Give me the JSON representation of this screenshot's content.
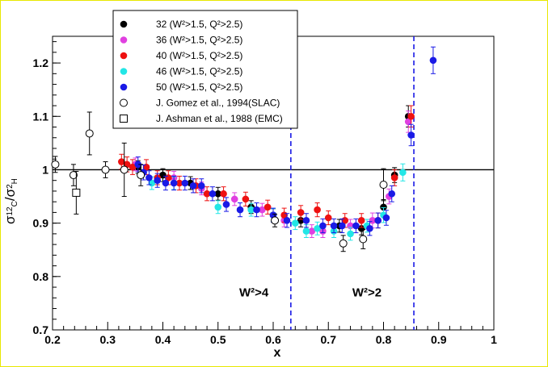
{
  "chart_data": {
    "type": "scatter",
    "title": "",
    "xlabel": "x",
    "ylabel_main": "σ",
    "ylabel_num_sup": "12",
    "ylabel_num_sub": "C",
    "ylabel_slash": "/",
    "ylabel_den_sup": "2",
    "ylabel_den_sub": "H",
    "xlim": [
      0.2,
      1.0
    ],
    "ylim": [
      0.7,
      1.25
    ],
    "xticks": [
      0.2,
      0.3,
      0.4,
      0.5,
      0.6,
      0.7,
      0.8,
      0.9,
      1.0
    ],
    "xtick_labels": [
      "0.2",
      "0.3",
      "0.4",
      "0.5",
      "0.6",
      "0.7",
      "0.8",
      "0.9",
      "1"
    ],
    "yticks": [
      0.7,
      0.8,
      0.9,
      1.0,
      1.1,
      1.2
    ],
    "ytick_labels": [
      "0.7",
      "0.8",
      "0.9",
      "1",
      "1.1",
      "1.2"
    ],
    "reference_line_y": 1.0,
    "vlines": [
      0.632,
      0.855
    ],
    "annotations": [
      {
        "text": "W²>4",
        "x": 0.565,
        "y": 0.763
      },
      {
        "text": "W²>2",
        "x": 0.77,
        "y": 0.763
      }
    ],
    "legend_position": "top-left",
    "series": [
      {
        "name": "32  (W²>1.5, Q²>2.5)",
        "color": "#000000",
        "marker": "filled",
        "x": [
          0.355,
          0.4,
          0.45,
          0.5,
          0.56,
          0.6,
          0.65,
          0.72,
          0.76,
          0.8,
          0.82,
          0.845
        ],
        "y": [
          1.005,
          0.99,
          0.975,
          0.955,
          0.93,
          0.915,
          0.905,
          0.895,
          0.89,
          0.93,
          0.99,
          1.1
        ],
        "err": [
          0.012,
          0.012,
          0.012,
          0.012,
          0.012,
          0.012,
          0.012,
          0.012,
          0.012,
          0.014,
          0.014,
          0.02
        ]
      },
      {
        "name": "36  (W²>1.5, Q²>2.5)",
        "color": "#e040e0",
        "marker": "filled",
        "x": [
          0.35,
          0.42,
          0.47,
          0.53,
          0.58,
          0.62,
          0.67,
          0.69,
          0.74,
          0.78,
          0.81,
          0.845
        ],
        "y": [
          1.01,
          0.985,
          0.965,
          0.945,
          0.925,
          0.905,
          0.885,
          0.885,
          0.895,
          0.905,
          0.95,
          1.09
        ],
        "err": [
          0.012,
          0.012,
          0.012,
          0.012,
          0.012,
          0.012,
          0.012,
          0.012,
          0.012,
          0.014,
          0.014,
          0.02
        ]
      },
      {
        "name": "40  (W²>1.5, Q²>2.5)",
        "color": "#ee1111",
        "marker": "filled",
        "x": [
          0.325,
          0.335,
          0.345,
          0.37,
          0.39,
          0.41,
          0.43,
          0.46,
          0.48,
          0.51,
          0.55,
          0.59,
          0.62,
          0.65,
          0.68,
          0.7,
          0.73,
          0.76,
          0.79,
          0.82,
          0.85
        ],
        "y": [
          1.015,
          1.01,
          1.005,
          1.005,
          0.985,
          0.985,
          0.975,
          0.97,
          0.955,
          0.955,
          0.945,
          0.93,
          0.915,
          0.92,
          0.925,
          0.91,
          0.905,
          0.905,
          0.905,
          0.985,
          1.1
        ],
        "err": [
          0.014,
          0.014,
          0.014,
          0.014,
          0.013,
          0.013,
          0.013,
          0.013,
          0.013,
          0.013,
          0.013,
          0.013,
          0.013,
          0.013,
          0.013,
          0.013,
          0.013,
          0.013,
          0.014,
          0.015,
          0.02
        ]
      },
      {
        "name": "46  (W²>1.5, Q²>2.5)",
        "color": "#22e6e6",
        "marker": "filled",
        "x": [
          0.38,
          0.42,
          0.5,
          0.56,
          0.6,
          0.64,
          0.66,
          0.68,
          0.71,
          0.74,
          0.77,
          0.8,
          0.835
        ],
        "y": [
          0.975,
          0.975,
          0.93,
          0.925,
          0.915,
          0.9,
          0.885,
          0.89,
          0.885,
          0.88,
          0.895,
          0.915,
          0.995
        ],
        "err": [
          0.012,
          0.012,
          0.012,
          0.012,
          0.012,
          0.012,
          0.012,
          0.012,
          0.012,
          0.012,
          0.012,
          0.014,
          0.016
        ]
      },
      {
        "name": "50  (W²>1.5, Q²>2.5)",
        "color": "#1a1ae6",
        "marker": "filled",
        "x": [
          0.355,
          0.365,
          0.375,
          0.39,
          0.405,
          0.42,
          0.44,
          0.455,
          0.47,
          0.49,
          0.515,
          0.54,
          0.57,
          0.6,
          0.625,
          0.66,
          0.69,
          0.71,
          0.725,
          0.75,
          0.775,
          0.79,
          0.805,
          0.815,
          0.85,
          0.89
        ],
        "y": [
          1.01,
          0.995,
          0.985,
          0.98,
          0.975,
          0.975,
          0.975,
          0.97,
          0.97,
          0.955,
          0.935,
          0.925,
          0.925,
          0.915,
          0.905,
          0.905,
          0.895,
          0.895,
          0.895,
          0.895,
          0.89,
          0.905,
          0.91,
          0.955,
          1.065,
          1.205
        ],
        "err": [
          0.014,
          0.014,
          0.013,
          0.013,
          0.013,
          0.013,
          0.013,
          0.013,
          0.013,
          0.013,
          0.013,
          0.013,
          0.013,
          0.013,
          0.013,
          0.013,
          0.013,
          0.013,
          0.013,
          0.013,
          0.013,
          0.014,
          0.014,
          0.015,
          0.02,
          0.025
        ]
      },
      {
        "name": "J. Gomez et al., 1994(SLAC)",
        "color": "#000000",
        "marker": "open-circle",
        "x": [
          0.205,
          0.238,
          0.267,
          0.296,
          0.33,
          0.36,
          0.603,
          0.727,
          0.763,
          0.8
        ],
        "y": [
          1.01,
          0.99,
          1.068,
          1.0,
          1.0,
          0.99,
          0.905,
          0.862,
          0.87,
          0.972
        ],
        "err": [
          0.015,
          0.02,
          0.04,
          0.015,
          0.05,
          0.02,
          0.012,
          0.015,
          0.018,
          0.03
        ]
      },
      {
        "name": "J. Ashman et al., 1988 (EMC)",
        "color": "#000000",
        "marker": "open-square",
        "x": [
          0.243
        ],
        "y": [
          0.957
        ],
        "err": [
          0.04
        ]
      }
    ]
  }
}
